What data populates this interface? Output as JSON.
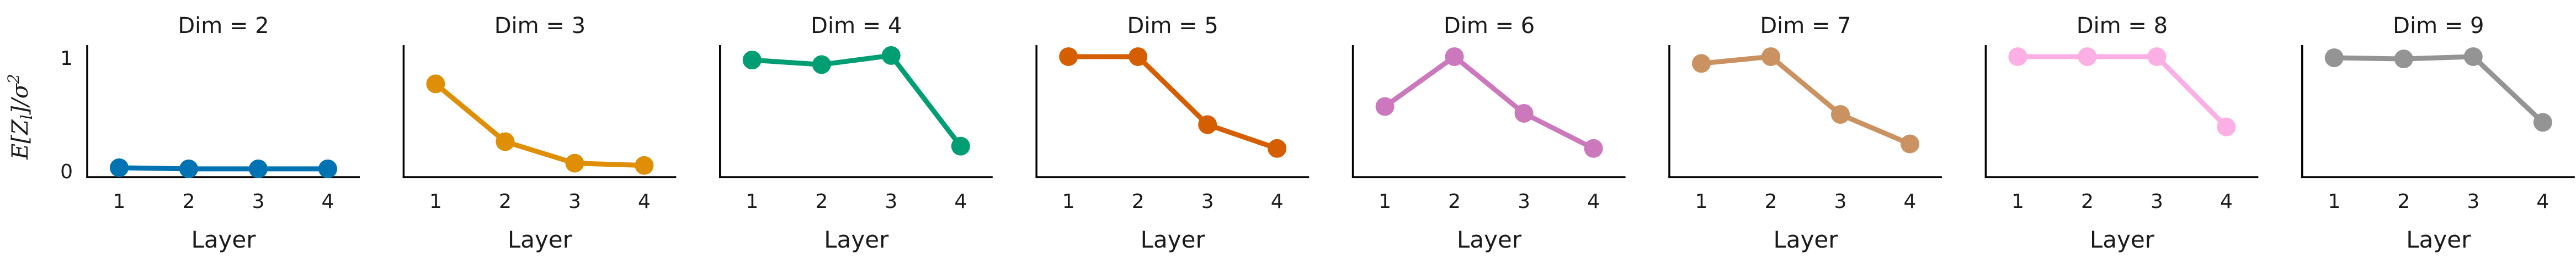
{
  "chart_data": {
    "type": "line",
    "ylabel": "E[Z_l]/σ²",
    "ylabel_parts": {
      "main": "E[Z",
      "sub": "l",
      "mid": "]/σ",
      "sup": "2"
    },
    "xlabel": "Layer",
    "x": [
      1,
      2,
      3,
      4
    ],
    "ylim": [
      0,
      1.1
    ],
    "yticks": [
      0,
      1
    ],
    "grid": false,
    "panels": [
      {
        "title": "Dim = 2",
        "color": "#0173b2",
        "values": [
          0.03,
          0.02,
          0.02,
          0.02
        ]
      },
      {
        "title": "Dim = 3",
        "color": "#de8f05",
        "values": [
          0.77,
          0.26,
          0.07,
          0.05
        ]
      },
      {
        "title": "Dim = 4",
        "color": "#029e73",
        "values": [
          0.98,
          0.94,
          1.02,
          0.22
        ]
      },
      {
        "title": "Dim = 5",
        "color": "#d55e00",
        "values": [
          1.01,
          1.01,
          0.41,
          0.2
        ]
      },
      {
        "title": "Dim = 6",
        "color": "#cc78bc",
        "values": [
          0.57,
          1.01,
          0.51,
          0.2
        ]
      },
      {
        "title": "Dim = 7",
        "color": "#ca9161",
        "values": [
          0.95,
          1.01,
          0.5,
          0.24
        ]
      },
      {
        "title": "Dim = 8",
        "color": "#fbafe4",
        "values": [
          1.01,
          1.01,
          1.01,
          0.39
        ]
      },
      {
        "title": "Dim = 9",
        "color": "#949494",
        "values": [
          1.0,
          0.99,
          1.01,
          0.43
        ]
      }
    ]
  }
}
